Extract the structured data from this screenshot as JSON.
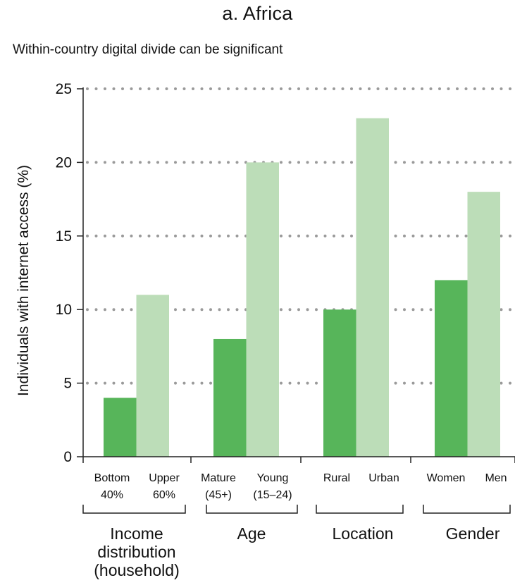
{
  "chart_data": {
    "type": "bar",
    "title": "a. Africa",
    "subtitle": "Within-country digital divide can be significant",
    "ylabel": "Individuals with internet access (%)",
    "ylim": [
      0,
      25
    ],
    "yticks": [
      0,
      5,
      10,
      15,
      20,
      25
    ],
    "grid": true,
    "colors": {
      "dark": "#57b55a",
      "light": "#bcddb8",
      "axis": "#222222",
      "grid": "#9a9a9a"
    },
    "groups": [
      {
        "label": [
          "Income",
          "distribution",
          "(household)"
        ],
        "bars": [
          {
            "label": [
              "Bottom",
              "40%"
            ],
            "value": 4,
            "shade": "dark"
          },
          {
            "label": [
              "Upper",
              "60%"
            ],
            "value": 11,
            "shade": "light"
          }
        ]
      },
      {
        "label": [
          "Age"
        ],
        "bars": [
          {
            "label": [
              "Mature",
              "(45+)"
            ],
            "value": 8,
            "shade": "dark"
          },
          {
            "label": [
              "Young",
              "(15–24)"
            ],
            "value": 20,
            "shade": "light"
          }
        ]
      },
      {
        "label": [
          "Location"
        ],
        "bars": [
          {
            "label": [
              "Rural"
            ],
            "value": 10,
            "shade": "dark"
          },
          {
            "label": [
              "Urban"
            ],
            "value": 23,
            "shade": "light"
          }
        ]
      },
      {
        "label": [
          "Gender"
        ],
        "bars": [
          {
            "label": [
              "Women"
            ],
            "value": 12,
            "shade": "dark"
          },
          {
            "label": [
              "Men"
            ],
            "value": 18,
            "shade": "light"
          }
        ]
      }
    ]
  }
}
